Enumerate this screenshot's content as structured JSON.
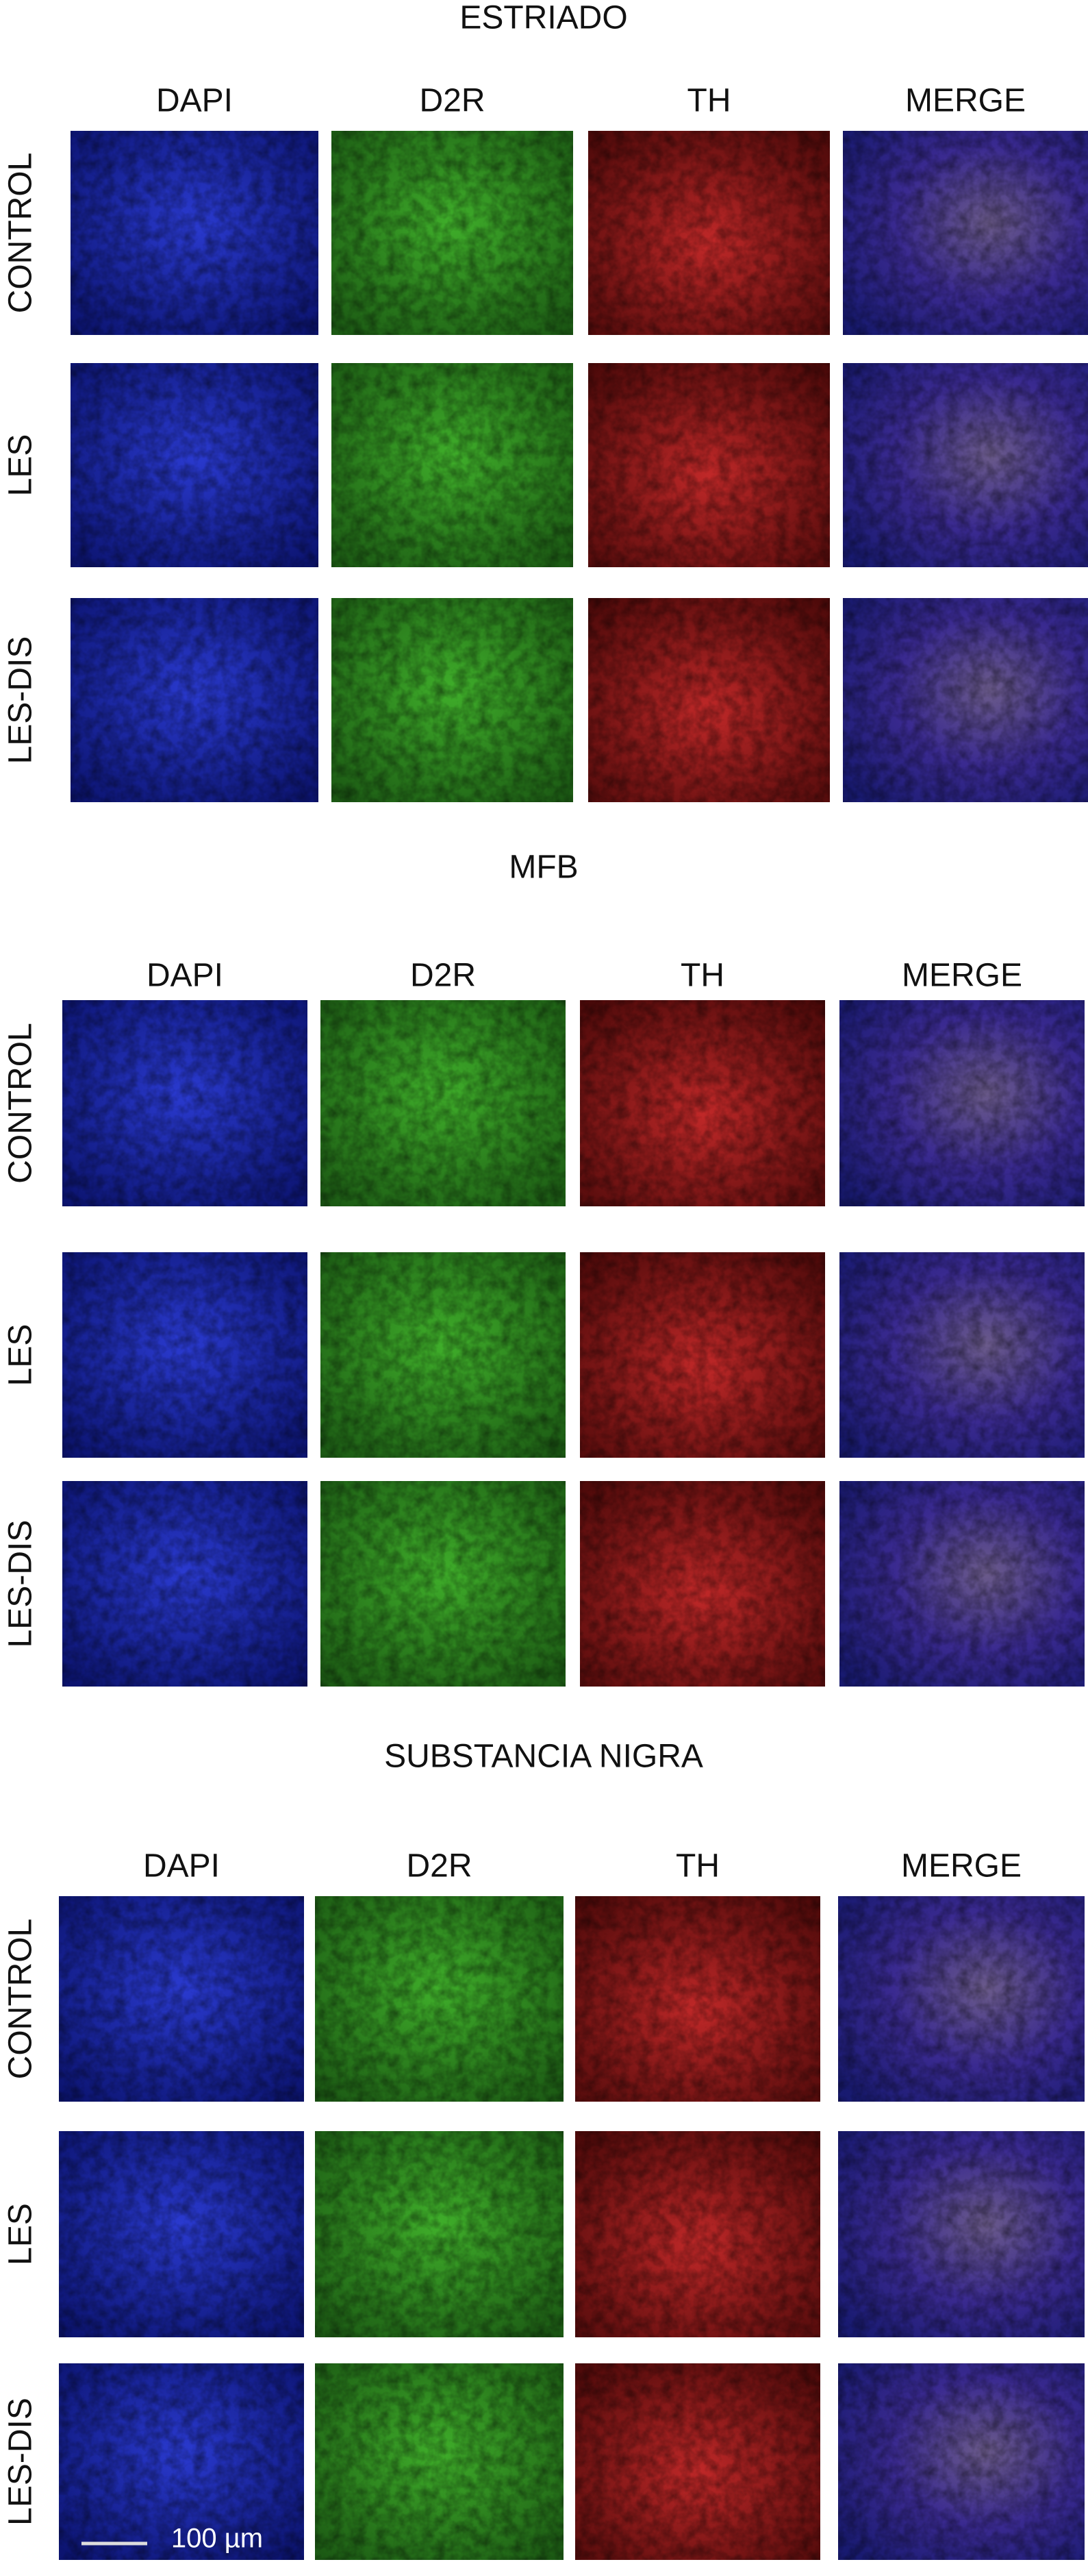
{
  "sections": [
    {
      "title": "ESTRIADO",
      "columns": [
        "DAPI",
        "D2R",
        "TH",
        "MERGE"
      ],
      "rows": [
        "CONTROL",
        "LES",
        "LES-DIS"
      ]
    },
    {
      "title": "MFB",
      "columns": [
        "DAPI",
        "D2R",
        "TH",
        "MERGE"
      ],
      "rows": [
        "CONTROL",
        "LES",
        "LES-DIS"
      ]
    },
    {
      "title": "SUBSTANCIA NIGRA",
      "columns": [
        "DAPI",
        "D2R",
        "TH",
        "MERGE"
      ],
      "rows": [
        "CONTROL",
        "LES",
        "LES-DIS"
      ]
    }
  ],
  "scale_bar": "100 µm"
}
